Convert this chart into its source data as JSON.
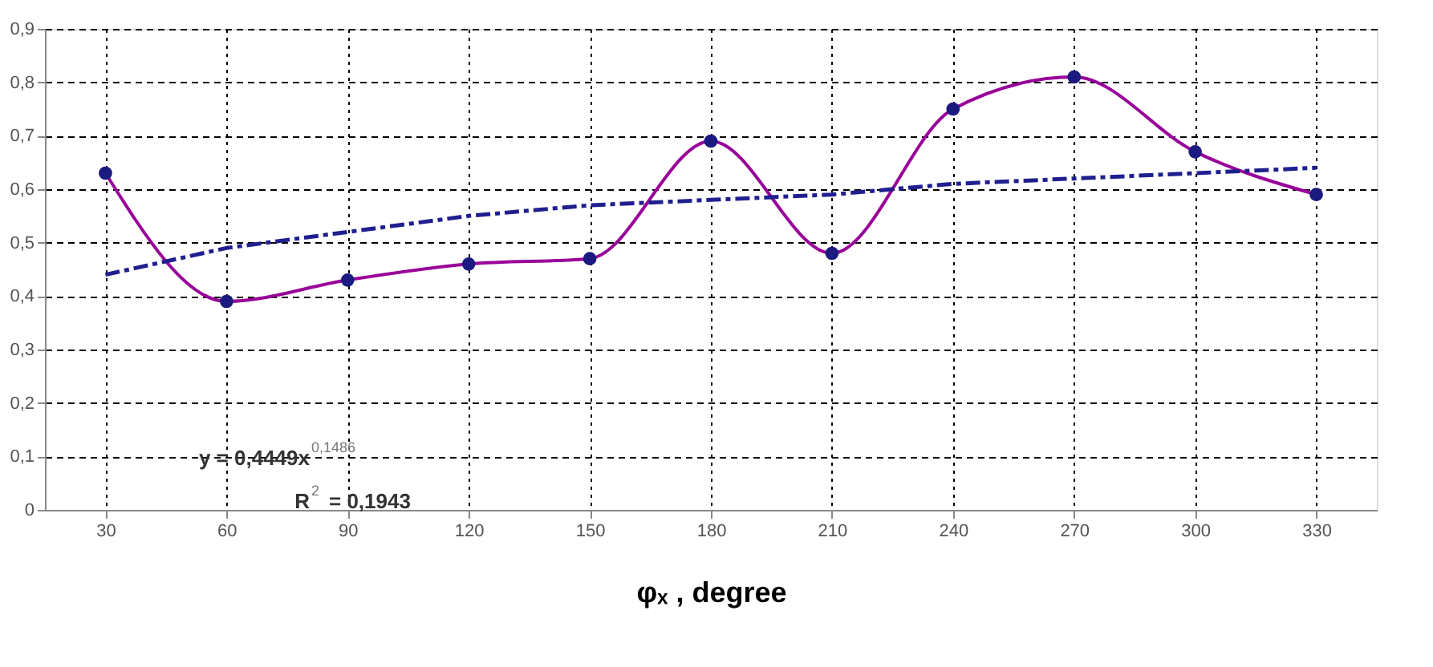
{
  "chart_data": {
    "type": "line",
    "xlabel": "φₓ , degree",
    "categories": [
      "30",
      "60",
      "90",
      "120",
      "150",
      "180",
      "210",
      "240",
      "270",
      "300",
      "330"
    ],
    "series": [
      {
        "color": "#990099",
        "values": [
          0.63,
          0.39,
          0.43,
          0.46,
          0.47,
          0.69,
          0.48,
          0.75,
          0.81,
          0.67,
          0.59
        ],
        "marker": "circle",
        "line_style": "solid"
      },
      {
        "type": "line",
        "color": "#1f1f8f",
        "values": [
          0.44,
          0.49,
          0.52,
          0.55,
          0.57,
          0.58,
          0.59,
          0.61,
          0.62,
          0.63,
          0.64
        ],
        "marker": "none",
        "line_style": "dashed"
      }
    ],
    "ylim": [
      0,
      0.9
    ],
    "yticks": [
      0,
      {
        "value": 0.1,
        "label": "0,1"
      },
      {
        "value": 0.2,
        "label": "0,2"
      },
      {
        "value": 0.3,
        "label": "0,3"
      },
      {
        "value": 0.4,
        "label": "0,4"
      },
      {
        "value": 0.5,
        "label": "0,5"
      },
      {
        "value": 0.6,
        "label": "0,6"
      },
      {
        "value": 0.7,
        "label": "0,7"
      },
      {
        "value": 0.8,
        "label": "0,8"
      },
      {
        "value": 0.9,
        "label": "0,9"
      }
    ],
    "grid": true,
    "annotations": [
      "y = 0,4449x$^{0,1486}$",
      "R$^{2}$ = 0,1943"
    ]
  }
}
